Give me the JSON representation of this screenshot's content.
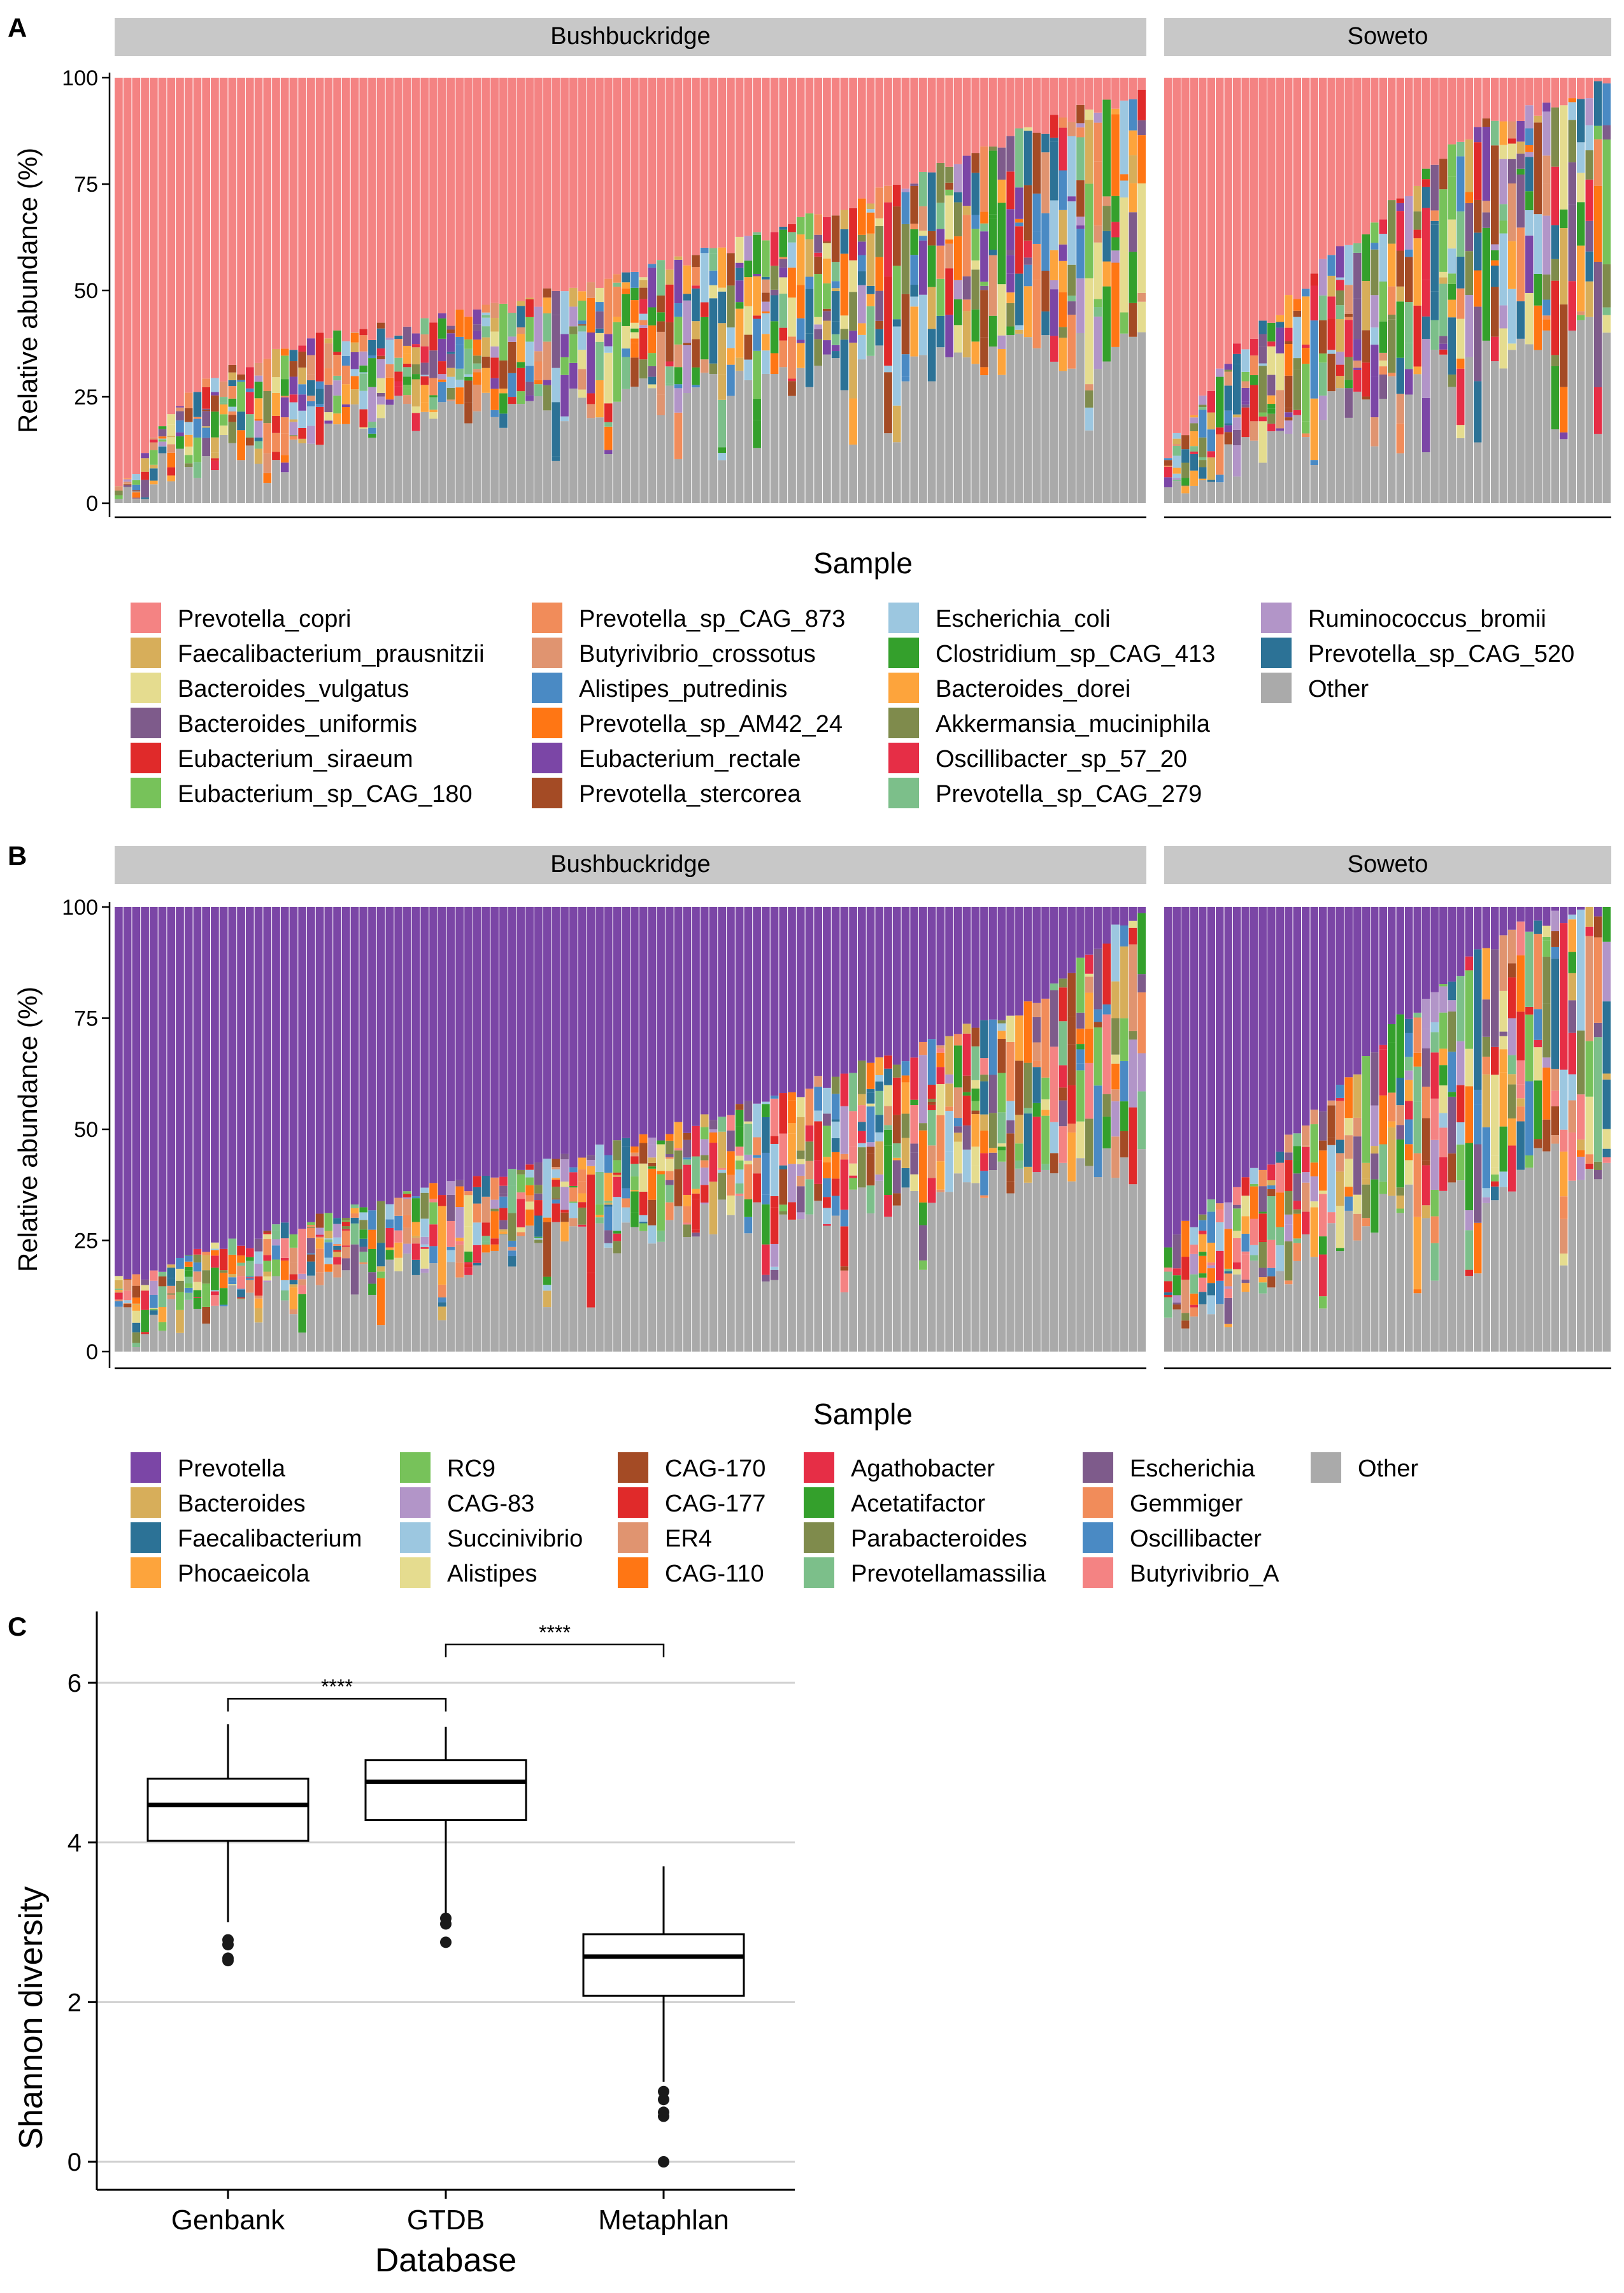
{
  "panel_labels": [
    "A",
    "B",
    "C"
  ],
  "colors": {
    "other": "#aaaaaa",
    "strip_bg": "#c8c8c8",
    "grid": "#d0d0d0",
    "axis": "#000000"
  },
  "chart_data": [
    {
      "type": "bar",
      "stacked": true,
      "panel": "A",
      "facets": [
        "Bushbuckridge",
        "Soweto"
      ],
      "facet_sample_counts": [
        118,
        52
      ],
      "xlabel": "Sample",
      "ylabel": "Relative abundance (%)",
      "ylim": [
        0,
        100
      ],
      "yticks": [
        0,
        25,
        50,
        75,
        100
      ],
      "dominant_taxon": "Prevotella_copri",
      "dominant_trend": {
        "Bushbuckridge": [
          [
            0,
            97
          ],
          [
            8,
            74
          ],
          [
            20,
            63
          ],
          [
            40,
            56
          ],
          [
            60,
            46
          ],
          [
            80,
            33
          ],
          [
            100,
            16
          ],
          [
            117,
            3
          ]
        ],
        "Soweto": [
          [
            0,
            88
          ],
          [
            8,
            64
          ],
          [
            16,
            48
          ],
          [
            26,
            30
          ],
          [
            36,
            12
          ],
          [
            51,
            2
          ]
        ]
      },
      "other_trend": {
        "Bushbuckridge": [
          [
            0,
            3
          ],
          [
            10,
            11
          ],
          [
            30,
            20
          ],
          [
            60,
            25
          ],
          [
            90,
            33
          ],
          [
            117,
            37
          ]
        ],
        "Soweto": [
          [
            0,
            4
          ],
          [
            12,
            14
          ],
          [
            25,
            28
          ],
          [
            40,
            36
          ],
          [
            51,
            40
          ]
        ]
      },
      "legend": [
        {
          "name": "Prevotella_copri",
          "color": "#f48383"
        },
        {
          "name": "Faecalibacterium_prausnitzii",
          "color": "#d7ae5a"
        },
        {
          "name": "Bacteroides_vulgatus",
          "color": "#e5dc8f"
        },
        {
          "name": "Bacteroides_uniformis",
          "color": "#7e5b8b"
        },
        {
          "name": "Eubacterium_siraeum",
          "color": "#e02a2a"
        },
        {
          "name": "Eubacterium_sp_CAG_180",
          "color": "#77c25a"
        },
        {
          "name": "Prevotella_sp_CAG_873",
          "color": "#f18c5a"
        },
        {
          "name": "Butyrivibrio_crossotus",
          "color": "#e09470"
        },
        {
          "name": "Alistipes_putredinis",
          "color": "#4a8ac4"
        },
        {
          "name": "Prevotella_sp_AM42_24",
          "color": "#ff7614"
        },
        {
          "name": "Eubacterium_rectale",
          "color": "#7b46a6"
        },
        {
          "name": "Prevotella_stercorea",
          "color": "#a44b25"
        },
        {
          "name": "Escherichia_coli",
          "color": "#9cc7e0"
        },
        {
          "name": "Clostridium_sp_CAG_413",
          "color": "#34a02c"
        },
        {
          "name": "Bacteroides_dorei",
          "color": "#fda43c"
        },
        {
          "name": "Akkermansia_muciniphila",
          "color": "#7f8b4c"
        },
        {
          "name": "Oscillibacter_sp_57_20",
          "color": "#e62e46"
        },
        {
          "name": "Prevotella_sp_CAG_279",
          "color": "#7cbf8a"
        },
        {
          "name": "Ruminococcus_bromii",
          "color": "#b295c8"
        },
        {
          "name": "Prevotella_sp_CAG_520",
          "color": "#2c7296"
        },
        {
          "name": "Other",
          "color": "#aaaaaa"
        }
      ]
    },
    {
      "type": "bar",
      "stacked": true,
      "panel": "B",
      "facets": [
        "Bushbuckridge",
        "Soweto"
      ],
      "facet_sample_counts": [
        118,
        52
      ],
      "xlabel": "Sample",
      "ylabel": "Relative abundance (%)",
      "ylim": [
        0,
        100
      ],
      "yticks": [
        0,
        25,
        50,
        75,
        100
      ],
      "dominant_taxon": "Prevotella",
      "dominant_trend": {
        "Bushbuckridge": [
          [
            0,
            84
          ],
          [
            10,
            78
          ],
          [
            30,
            66
          ],
          [
            50,
            58
          ],
          [
            70,
            46
          ],
          [
            90,
            33
          ],
          [
            105,
            22
          ],
          [
            117,
            0
          ]
        ],
        "Soweto": [
          [
            0,
            75
          ],
          [
            10,
            60
          ],
          [
            20,
            40
          ],
          [
            30,
            20
          ],
          [
            40,
            5
          ],
          [
            51,
            0
          ]
        ]
      },
      "other_trend": {
        "Bushbuckridge": [
          [
            0,
            6
          ],
          [
            15,
            11
          ],
          [
            40,
            22
          ],
          [
            70,
            30
          ],
          [
            100,
            38
          ],
          [
            117,
            42
          ]
        ],
        "Soweto": [
          [
            0,
            8
          ],
          [
            12,
            18
          ],
          [
            26,
            32
          ],
          [
            40,
            40
          ],
          [
            51,
            44
          ]
        ]
      },
      "legend": [
        {
          "name": "Prevotella",
          "color": "#7b46a6"
        },
        {
          "name": "Bacteroides",
          "color": "#d7ae5a"
        },
        {
          "name": "Faecalibacterium",
          "color": "#2c7296"
        },
        {
          "name": "Phocaeicola",
          "color": "#fda43c"
        },
        {
          "name": "RC9",
          "color": "#77c25a"
        },
        {
          "name": "CAG-83",
          "color": "#b295c8"
        },
        {
          "name": "Succinivibrio",
          "color": "#9cc7e0"
        },
        {
          "name": "Alistipes",
          "color": "#e5dc8f"
        },
        {
          "name": "CAG-170",
          "color": "#a44b25"
        },
        {
          "name": "CAG-177",
          "color": "#e02a2a"
        },
        {
          "name": "ER4",
          "color": "#e09470"
        },
        {
          "name": "CAG-110",
          "color": "#ff7614"
        },
        {
          "name": "Agathobacter",
          "color": "#e62e46"
        },
        {
          "name": "Acetatifactor",
          "color": "#34a02c"
        },
        {
          "name": "Parabacteroides",
          "color": "#7f8b4c"
        },
        {
          "name": "Prevotellamassilia",
          "color": "#7cbf8a"
        },
        {
          "name": "Escherichia",
          "color": "#7e5b8b"
        },
        {
          "name": "Gemmiger",
          "color": "#f18c5a"
        },
        {
          "name": "Oscillibacter",
          "color": "#4a8ac4"
        },
        {
          "name": "Butyrivibrio_A",
          "color": "#f48383"
        },
        {
          "name": "Other",
          "color": "#aaaaaa"
        }
      ]
    },
    {
      "type": "box",
      "panel": "C",
      "xlabel": "Database",
      "ylabel": "Shannon diversity",
      "ylim": [
        0,
        6.5
      ],
      "yticks": [
        0,
        2,
        4,
        6
      ],
      "grid": "horizontal",
      "categories": [
        "Genbank",
        "GTDB",
        "Metaphlan"
      ],
      "boxes": [
        {
          "q1": 4.02,
          "median": 4.47,
          "q3": 4.8,
          "whisker_low": 3.0,
          "whisker_high": 5.48,
          "outliers": [
            2.52,
            2.55,
            2.72,
            2.78
          ]
        },
        {
          "q1": 4.28,
          "median": 4.76,
          "q3": 5.03,
          "whisker_low": 3.1,
          "whisker_high": 5.45,
          "outliers": [
            2.75,
            2.98,
            3.05
          ]
        },
        {
          "q1": 2.08,
          "median": 2.57,
          "q3": 2.85,
          "whisker_low": 1.0,
          "whisker_high": 3.7,
          "outliers": [
            0.0,
            0.57,
            0.62,
            0.78,
            0.88
          ]
        }
      ],
      "significance": [
        {
          "from": "Genbank",
          "to": "GTDB",
          "label": "****",
          "y": 5.8
        },
        {
          "from": "GTDB",
          "to": "Metaphlan",
          "label": "****",
          "y": 6.48
        }
      ]
    }
  ]
}
